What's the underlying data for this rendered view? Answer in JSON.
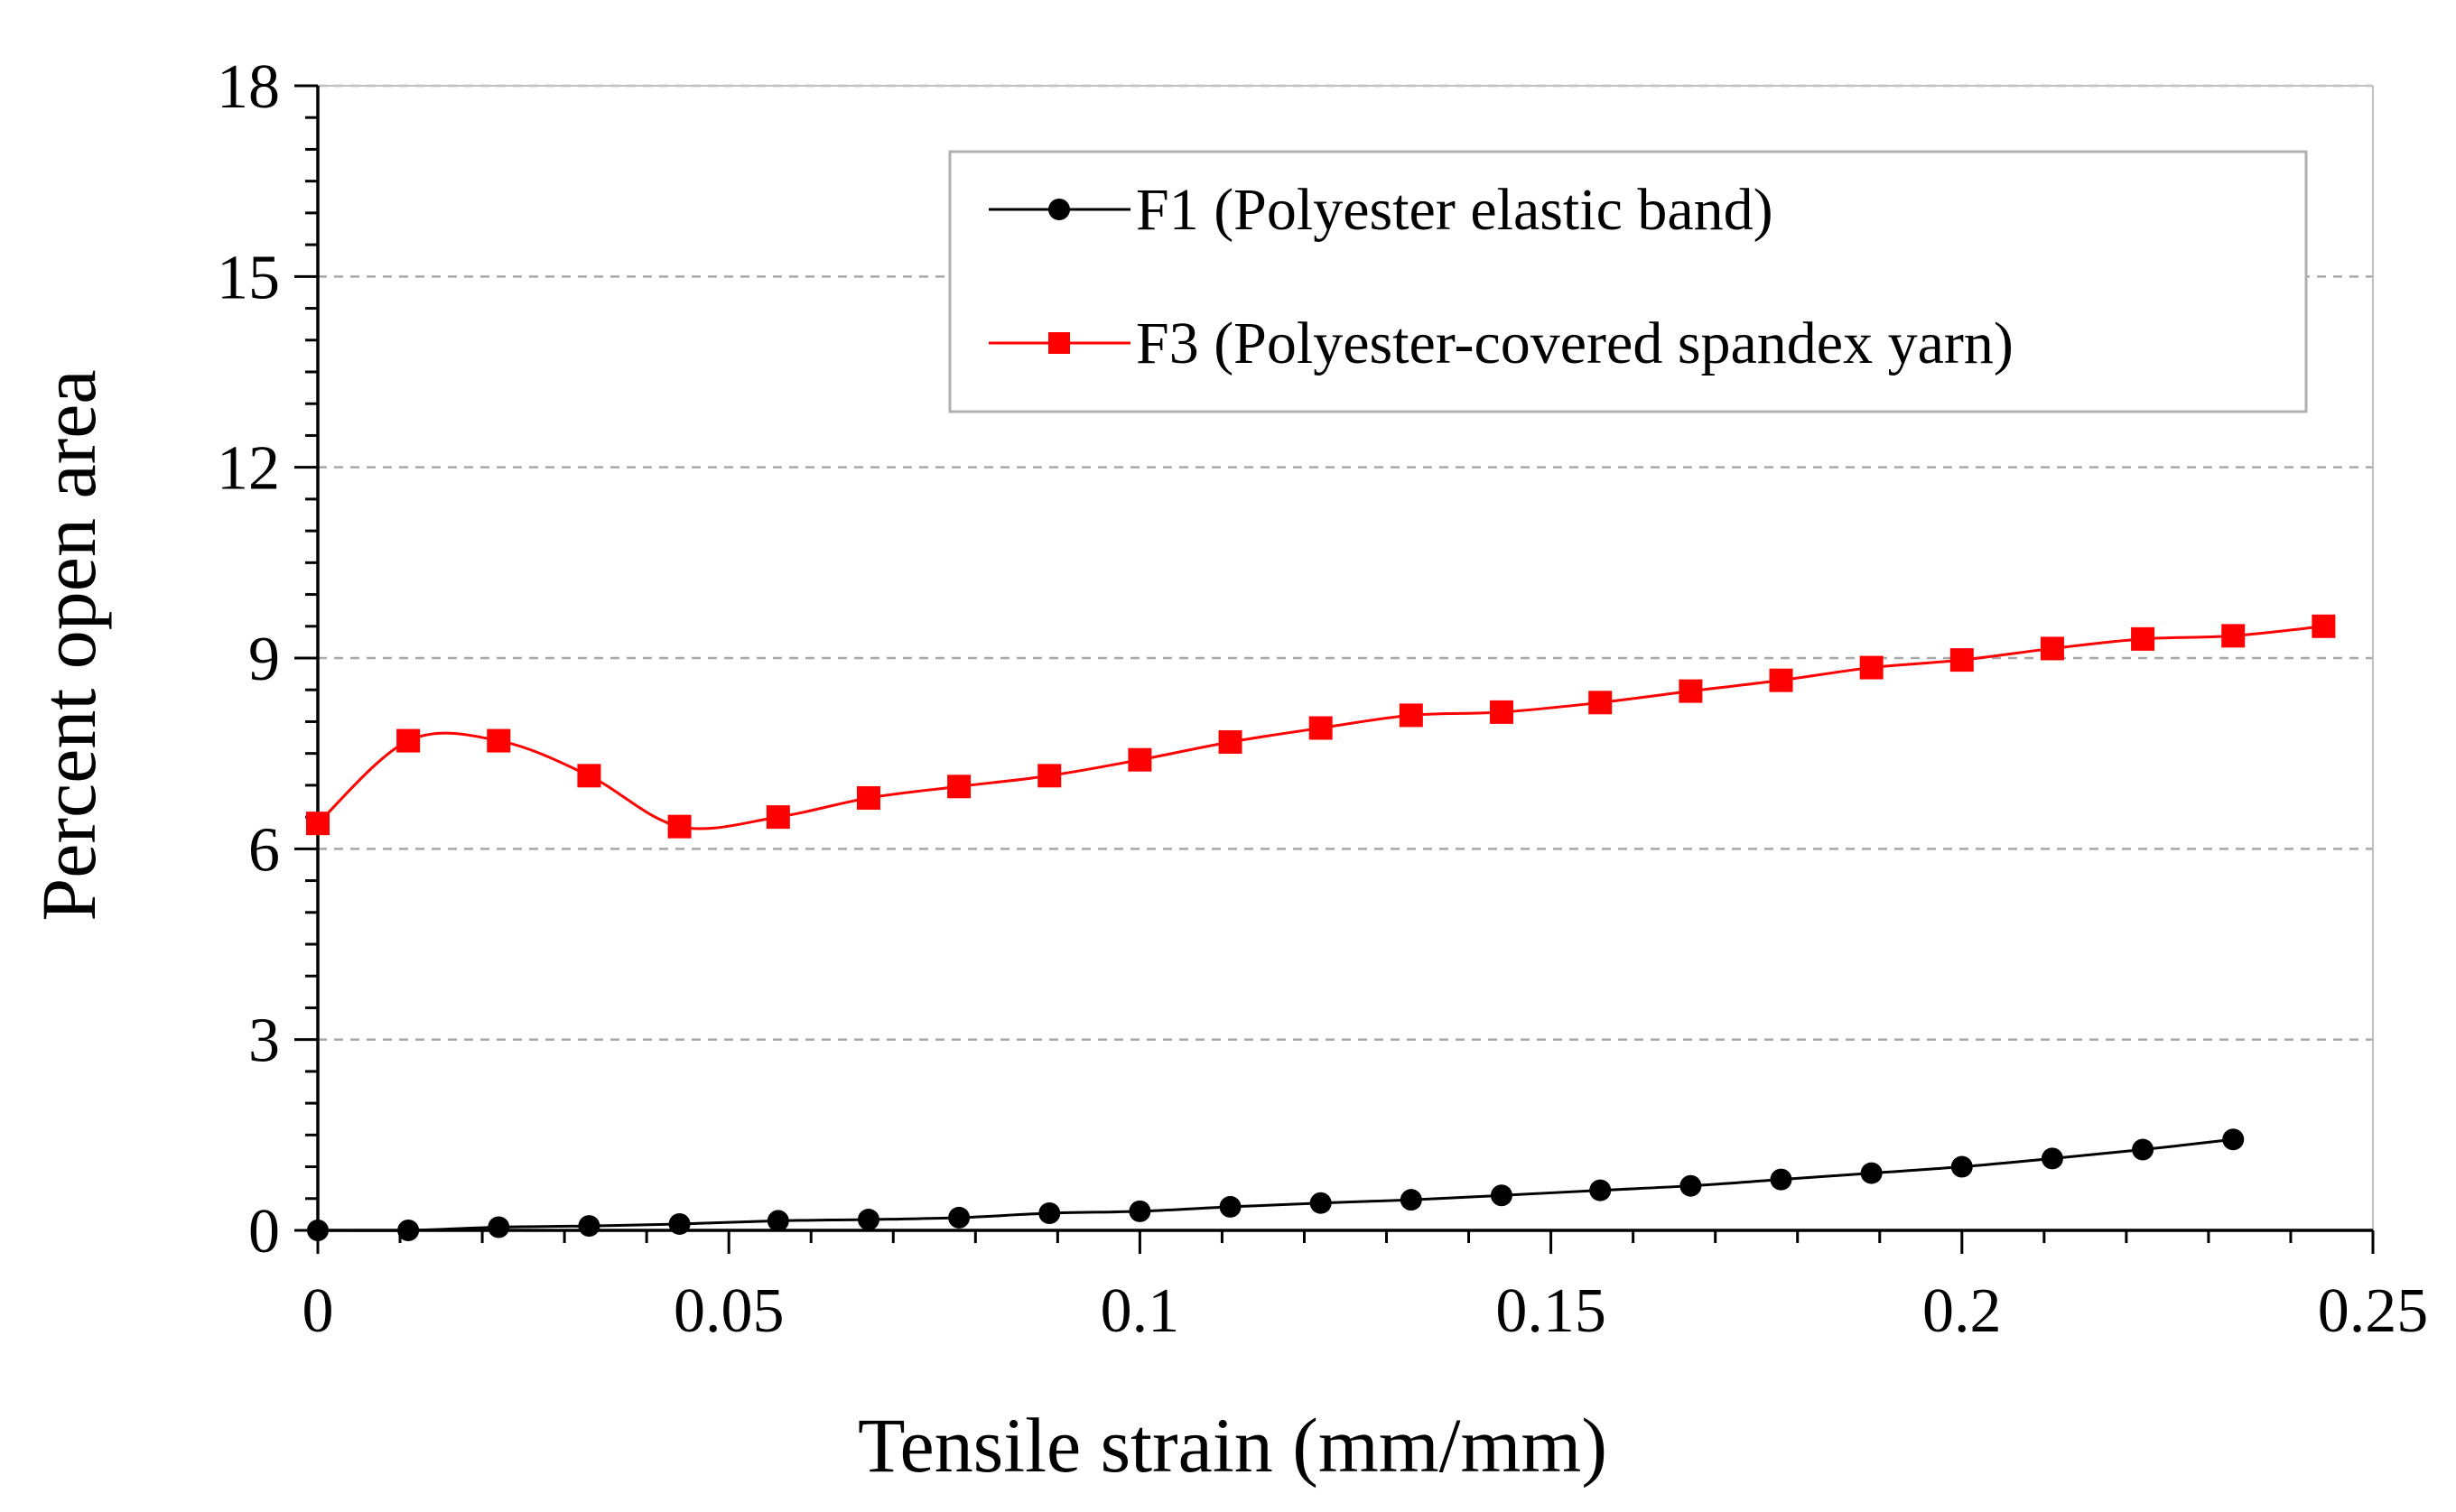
{
  "chart_data": {
    "type": "line",
    "title": "",
    "xlabel": "Tensile strain (mm/mm)",
    "ylabel": "Percent open area",
    "xlim": [
      0,
      0.25
    ],
    "ylim": [
      0,
      18
    ],
    "xticks": [
      0,
      0.05,
      0.1,
      0.15,
      0.2,
      0.25
    ],
    "xtick_labels": [
      "0",
      "0.05",
      "0.1",
      "0.15",
      "0.2",
      "0.25"
    ],
    "yticks": [
      0,
      3,
      6,
      9,
      12,
      15,
      18
    ],
    "ytick_labels": [
      "0",
      "3",
      "6",
      "9",
      "12",
      "15",
      "18"
    ],
    "grid": "horizontal dashed",
    "legend_position": "top-right",
    "series": [
      {
        "name": "F1 (Polyester elastic band)",
        "color": "#000000",
        "marker": "circle",
        "x": [
          0,
          0.011,
          0.022,
          0.033,
          0.044,
          0.056,
          0.067,
          0.078,
          0.089,
          0.1,
          0.111,
          0.122,
          0.133,
          0.144,
          0.156,
          0.167,
          0.178,
          0.189,
          0.2,
          0.211,
          0.222,
          0.233
        ],
        "y": [
          0,
          0.0,
          0.05,
          0.07,
          0.1,
          0.15,
          0.17,
          0.2,
          0.27,
          0.3,
          0.37,
          0.43,
          0.48,
          0.55,
          0.63,
          0.7,
          0.8,
          0.9,
          1.0,
          1.13,
          1.27,
          1.43
        ]
      },
      {
        "name": "F3 (Polyester-covered spandex yarn)",
        "color": "#ff0000",
        "marker": "square",
        "x": [
          0,
          0.011,
          0.022,
          0.033,
          0.044,
          0.056,
          0.067,
          0.078,
          0.089,
          0.1,
          0.111,
          0.122,
          0.133,
          0.144,
          0.156,
          0.167,
          0.178,
          0.189,
          0.2,
          0.211,
          0.222,
          0.233,
          0.244
        ],
        "y": [
          6.4,
          7.7,
          7.7,
          7.15,
          6.35,
          6.5,
          6.8,
          6.98,
          7.15,
          7.4,
          7.68,
          7.9,
          8.1,
          8.15,
          8.3,
          8.48,
          8.65,
          8.85,
          8.97,
          9.15,
          9.3,
          9.35,
          9.5
        ]
      }
    ]
  }
}
